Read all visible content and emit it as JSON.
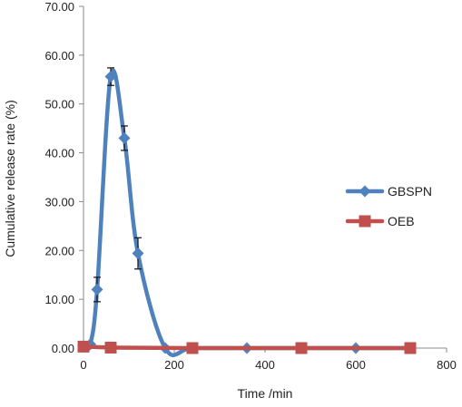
{
  "chart_data": {
    "type": "scatter",
    "title": "",
    "xlabel": "Time /min",
    "ylabel": "Cumulative release rate (%)",
    "xlim": [
      0,
      800
    ],
    "ylim": [
      0,
      70
    ],
    "x_ticks": [
      "0",
      "200",
      "400",
      "600",
      "800"
    ],
    "y_ticks": [
      "0.00",
      "10.00",
      "20.00",
      "30.00",
      "40.00",
      "50.00",
      "60.00",
      "70.00"
    ],
    "x_tick_values": [
      0,
      200,
      400,
      600,
      800
    ],
    "y_tick_values": [
      0,
      10,
      20,
      30,
      40,
      50,
      60,
      70
    ],
    "grid": false,
    "legend_position": "right",
    "series": [
      {
        "name": "GBSPN",
        "color": "#4F81BD",
        "marker": "diamond",
        "smooth": true,
        "points": [
          {
            "x": 0,
            "y": 0
          },
          {
            "x": 15,
            "y": 0.8
          },
          {
            "x": 30,
            "y": 12.0,
            "err": 2.5
          },
          {
            "x": 60,
            "y": 55.6,
            "err": 1.8
          },
          {
            "x": 90,
            "y": 43.0,
            "err": 2.5
          },
          {
            "x": 120,
            "y": 19.4,
            "err": 3.2
          },
          {
            "x": 180,
            "y": 0
          },
          {
            "x": 240,
            "y": 0
          },
          {
            "x": 360,
            "y": 0
          },
          {
            "x": 480,
            "y": 0
          },
          {
            "x": 600,
            "y": 0
          },
          {
            "x": 720,
            "y": 0
          }
        ]
      },
      {
        "name": "OEB",
        "color": "#C0504D",
        "marker": "square",
        "smooth": false,
        "points": [
          {
            "x": 0,
            "y": 0.3
          },
          {
            "x": 60,
            "y": 0.1
          },
          {
            "x": 240,
            "y": 0
          },
          {
            "x": 480,
            "y": 0
          },
          {
            "x": 720,
            "y": 0
          }
        ]
      }
    ]
  }
}
